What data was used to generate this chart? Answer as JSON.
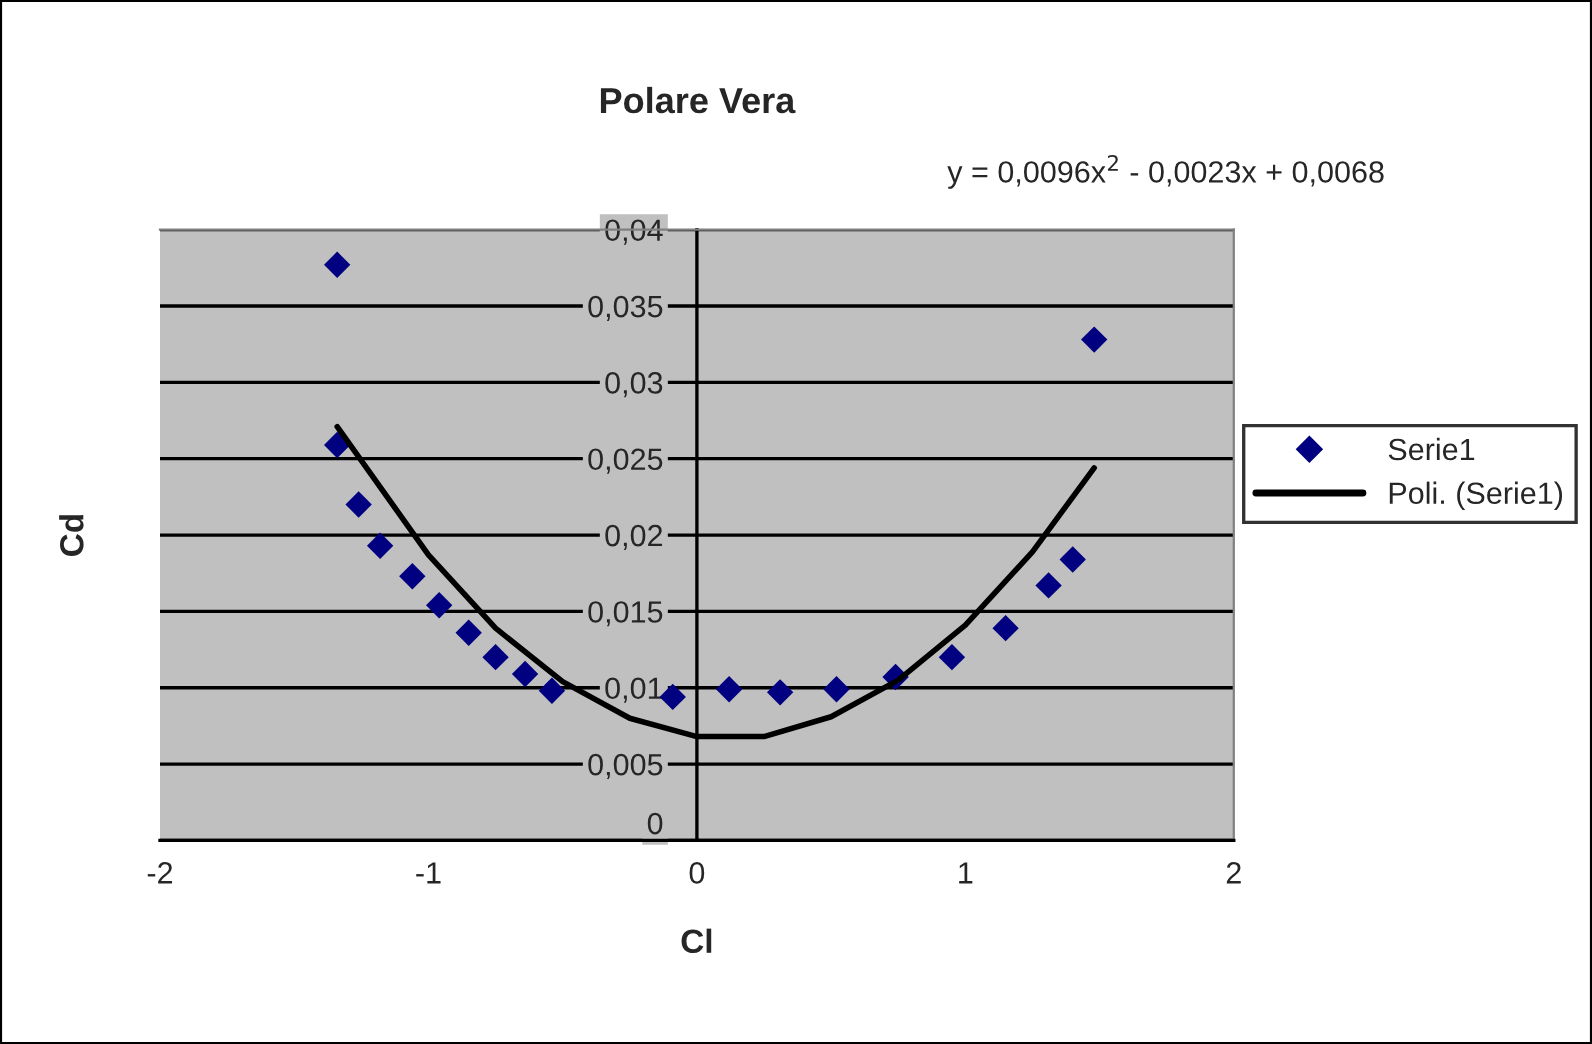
{
  "chart_data": {
    "type": "scatter",
    "title": "Polare Vera",
    "xlabel": "Cl",
    "ylabel": "Cd",
    "annotations": [
      "y = 0,0096x$^{2}$ - 0,0023x + 0,0068"
    ],
    "series": [
      {
        "name": "Serie1",
        "color": "#000080",
        "marker": "diamond",
        "x": [
          -1.34,
          -1.34,
          -1.26,
          -1.18,
          -1.06,
          -0.96,
          -0.85,
          -0.75,
          -0.64,
          -0.54,
          -0.09,
          0.12,
          0.31,
          0.52,
          0.74,
          0.95,
          1.15,
          1.31,
          1.4,
          1.48
        ],
        "values": [
          0.0377,
          0.0259,
          0.022,
          0.0193,
          0.0173,
          0.0154,
          0.0136,
          0.012,
          0.0109,
          0.0098,
          0.0094,
          0.0099,
          0.0097,
          0.0099,
          0.0107,
          0.012,
          0.0139,
          0.0167,
          0.0184,
          0.0328
        ]
      },
      {
        "name": "Poli. (Serie1)",
        "type": "line",
        "color": "#000000",
        "line_style": "solid",
        "x": [
          -1.34,
          -1.0,
          -0.75,
          -0.5,
          -0.25,
          0,
          0.25,
          0.5,
          0.75,
          1.0,
          1.25,
          1.48
        ],
        "values": [
          0.0271,
          0.0187,
          0.0139,
          0.0104,
          0.008,
          0.0068,
          0.0068,
          0.0081,
          0.0105,
          0.0141,
          0.0189,
          0.0244
        ]
      }
    ],
    "xlim": [
      -2,
      2
    ],
    "xticks": [
      -2,
      -1,
      0,
      1,
      2
    ],
    "ylim": [
      0,
      0.04
    ],
    "yticks": [
      {
        "value": 0,
        "label": "0"
      },
      {
        "value": 0.005,
        "label": "0,005"
      },
      {
        "value": 0.01,
        "label": "0,01"
      },
      {
        "value": 0.015,
        "label": "0,015"
      },
      {
        "value": 0.02,
        "label": "0,02"
      },
      {
        "value": 0.025,
        "label": "0,025"
      },
      {
        "value": 0.03,
        "label": "0,03"
      },
      {
        "value": 0.035,
        "label": "0,035"
      },
      {
        "value": 0.04,
        "label": "0,04"
      }
    ],
    "grid": "y",
    "legend": "right"
  }
}
